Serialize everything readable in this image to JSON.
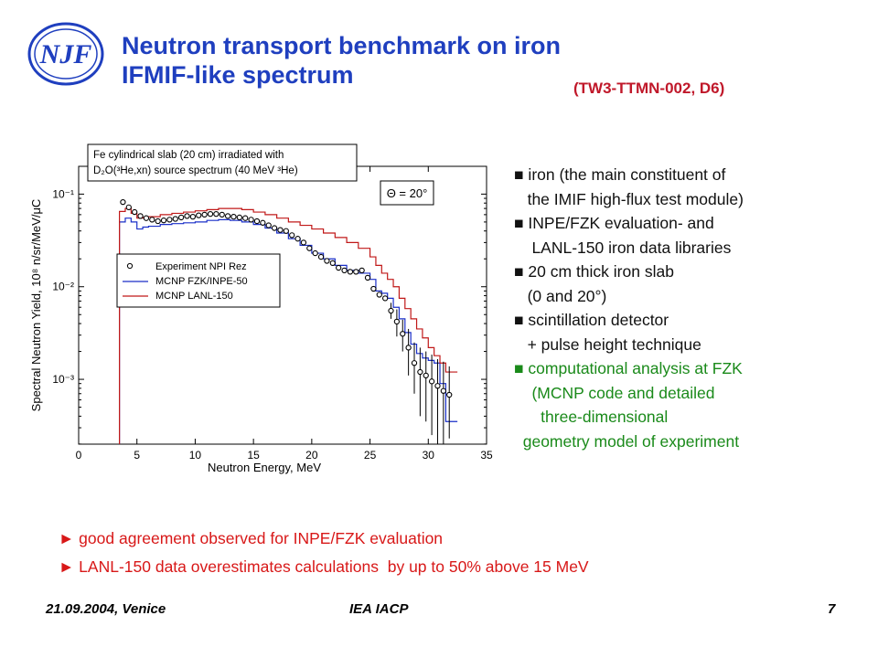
{
  "slide": {
    "title_line1": "Neutron transport benchmark on iron",
    "title_line2": "IFMIF-like spectrum",
    "title_code": "(TW3-TTMN-002, D6)"
  },
  "logo": {
    "text": "NJF",
    "color": "#1f3fbf",
    "icon": "institute-logo"
  },
  "chart_data": {
    "type": "line",
    "xlabel": "Neutron Energy,  MeV",
    "ylabel": "Spectral Neutron Yield,  10⁸ n/sr/MeV/μC",
    "xlim": [
      0,
      35
    ],
    "ylim_log10": [
      -3.7,
      -0.7
    ],
    "y_scale": "log",
    "x_ticks": [
      "0",
      "5",
      "10",
      "15",
      "20",
      "25",
      "30",
      "35"
    ],
    "y_ticks": [
      {
        "label": "10⁻³",
        "value": 0.001
      },
      {
        "label": "10⁻²",
        "value": 0.01
      },
      {
        "label": "10⁻¹",
        "value": 0.1
      }
    ],
    "grid": false,
    "annotation_box": [
      "Fe cylindrical slab (20 cm) irradiated with",
      "D₂O(³He,xn) source spectrum (40 MeV ³He)"
    ],
    "angle_box": "Θ = 20°",
    "legend_placement": "center-left",
    "series": [
      {
        "name": "Experiment NPI Rez",
        "kind": "points",
        "color": "#000000",
        "x": [
          3.8,
          4.3,
          4.8,
          5.3,
          5.8,
          6.3,
          6.8,
          7.3,
          7.8,
          8.3,
          8.8,
          9.3,
          9.8,
          10.3,
          10.8,
          11.3,
          11.8,
          12.3,
          12.8,
          13.3,
          13.8,
          14.3,
          14.8,
          15.3,
          15.8,
          16.3,
          16.8,
          17.3,
          17.8,
          18.3,
          18.8,
          19.3,
          19.8,
          20.3,
          20.8,
          21.3,
          21.8,
          22.3,
          22.8,
          23.3,
          23.8,
          24.3,
          24.8,
          25.3,
          25.8,
          26.3,
          26.8,
          27.3,
          27.8,
          28.3,
          28.8,
          29.3,
          29.8,
          30.3,
          30.8,
          31.3,
          31.8
        ],
        "values": [
          0.082,
          0.072,
          0.064,
          0.058,
          0.055,
          0.053,
          0.051,
          0.052,
          0.053,
          0.054,
          0.056,
          0.058,
          0.057,
          0.059,
          0.06,
          0.061,
          0.061,
          0.06,
          0.058,
          0.057,
          0.056,
          0.055,
          0.053,
          0.051,
          0.049,
          0.046,
          0.043,
          0.041,
          0.04,
          0.036,
          0.033,
          0.03,
          0.026,
          0.023,
          0.021,
          0.019,
          0.018,
          0.016,
          0.015,
          0.0145,
          0.0145,
          0.015,
          0.0125,
          0.0095,
          0.0082,
          0.0075,
          0.0055,
          0.0042,
          0.0031,
          0.0022,
          0.0015,
          0.0012,
          0.0011,
          0.00095,
          0.00085,
          0.00075,
          0.00068
        ],
        "errors_upper": [
          0,
          0,
          0,
          0,
          0,
          0,
          0,
          0,
          0,
          0,
          0,
          0,
          0,
          0,
          0,
          0,
          0,
          0,
          0,
          0,
          0,
          0,
          0,
          0,
          0,
          0,
          0,
          0,
          0,
          0,
          0,
          0,
          0,
          0,
          0,
          0,
          0,
          0,
          0,
          0,
          0,
          0,
          0,
          0,
          0,
          0,
          0.0012,
          0.0015,
          0.0013,
          0.0013,
          0.001,
          0.001,
          0.0009,
          0.0009,
          0.0008,
          0.0008,
          0.0007
        ],
        "errors_lower": [
          0,
          0,
          0,
          0,
          0,
          0,
          0,
          0,
          0,
          0,
          0,
          0,
          0,
          0,
          0,
          0,
          0,
          0,
          0,
          0,
          0,
          0,
          0,
          0,
          0,
          0,
          0,
          0,
          0,
          0,
          0,
          0,
          0,
          0,
          0,
          0,
          0,
          0,
          0,
          0,
          0,
          0,
          0,
          0,
          0,
          0,
          0.001,
          0.0013,
          0.0011,
          0.0011,
          0.0008,
          0.0008,
          0.00075,
          0.0007,
          0.00065,
          0.0006,
          0.00045
        ]
      },
      {
        "name": "MCNP FZK/INPE-50",
        "kind": "step",
        "color": "#1a2fc8",
        "edges": [
          3.5,
          4,
          4.5,
          5,
          5.5,
          6,
          7,
          8,
          9,
          10,
          11,
          12,
          13,
          14,
          15,
          16,
          17,
          18,
          19,
          20,
          21,
          22,
          23,
          24,
          25,
          25.5,
          26,
          26.5,
          27,
          27.5,
          28,
          28.5,
          29,
          29.5,
          30,
          30.5,
          31,
          31.5,
          32.5
        ],
        "values": [
          0.05,
          0.055,
          0.05,
          0.042,
          0.044,
          0.045,
          0.047,
          0.048,
          0.049,
          0.05,
          0.052,
          0.053,
          0.052,
          0.05,
          0.047,
          0.043,
          0.038,
          0.033,
          0.028,
          0.023,
          0.02,
          0.017,
          0.015,
          0.014,
          0.012,
          0.009,
          0.0085,
          0.0075,
          0.006,
          0.0045,
          0.0032,
          0.0024,
          0.0019,
          0.0017,
          0.0016,
          0.0015,
          0.0009,
          0.00035
        ]
      },
      {
        "name": "MCNP LANL-150",
        "kind": "step",
        "color": "#c01818",
        "edges": [
          3.5,
          4,
          4.5,
          5,
          5.5,
          6,
          7,
          8,
          9,
          10,
          11,
          12,
          13,
          14,
          15,
          16,
          17,
          18,
          19,
          20,
          21,
          22,
          23,
          24,
          25,
          25.5,
          26,
          26.5,
          27,
          27.5,
          28,
          28.5,
          29,
          29.5,
          30,
          30.5,
          31,
          31.5,
          32.5
        ],
        "values": [
          0.065,
          0.07,
          0.062,
          0.055,
          0.056,
          0.057,
          0.06,
          0.062,
          0.064,
          0.066,
          0.068,
          0.07,
          0.07,
          0.068,
          0.064,
          0.06,
          0.055,
          0.05,
          0.046,
          0.042,
          0.038,
          0.034,
          0.03,
          0.026,
          0.021,
          0.017,
          0.014,
          0.012,
          0.01,
          0.0075,
          0.0058,
          0.0045,
          0.0035,
          0.0028,
          0.0022,
          0.0018,
          0.0015,
          0.0012
        ]
      }
    ]
  },
  "bullets": [
    {
      "text": "■ iron (the main constituent of",
      "color": "#111111"
    },
    {
      "text": "   the IMIF high-flux test module)",
      "color": "#111111"
    },
    {
      "text": "■ INPE/FZK evaluation- and",
      "color": "#111111"
    },
    {
      "text": "    LANL-150 iron data libraries",
      "color": "#111111"
    },
    {
      "text": "■ 20 cm thick iron slab",
      "color": "#111111"
    },
    {
      "text": "   (0 and 20°)",
      "color": "#111111"
    },
    {
      "text": "■ scintillation detector",
      "color": "#111111"
    },
    {
      "text": "   + pulse height technique",
      "color": "#111111"
    },
    {
      "text": "■ computational analysis at FZK",
      "color": "#1a8a1a"
    },
    {
      "text": "    (MCNP code and detailed",
      "color": "#1a8a1a"
    },
    {
      "text": "      three-dimensional",
      "color": "#1a8a1a"
    },
    {
      "text": "  geometry model of experiment",
      "color": "#1a8a1a"
    }
  ],
  "conclusions": [
    "► good agreement observed for INPE/FZK evaluation",
    "► LANL-150 data overestimates calculations  by up to 50% above 15 MeV"
  ],
  "footer": {
    "date": "21.09.2004, Venice",
    "conference": "IEA IACP",
    "page": "7"
  }
}
